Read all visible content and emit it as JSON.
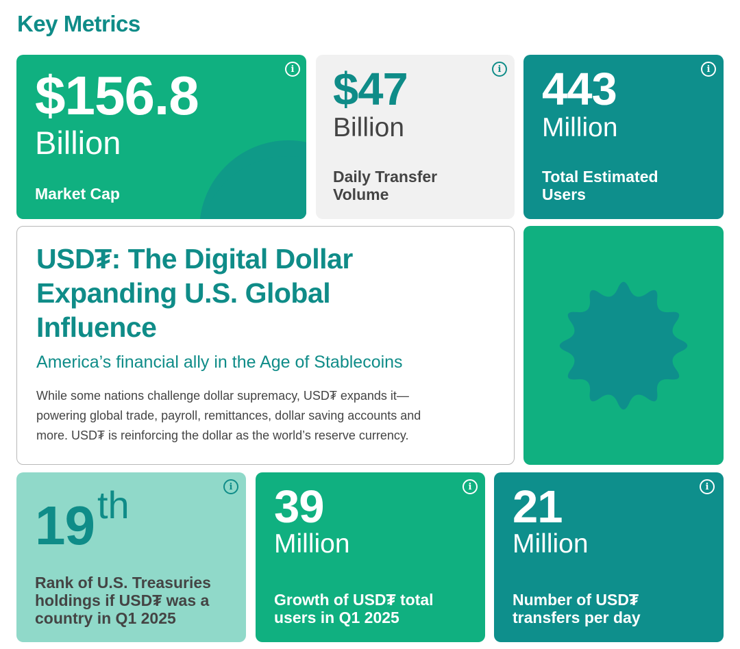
{
  "page": {
    "title": "Key Metrics"
  },
  "colors": {
    "teal_dark": "#0e8f8c",
    "green": "#10b080",
    "mint": "#90d9c9",
    "light_gray": "#f1f1f1",
    "title_teal": "#0f8c88",
    "text_gray": "#444444"
  },
  "info_icon": "i",
  "metrics": {
    "market_cap": {
      "value": "$156.8",
      "unit": "Billion",
      "label_lines": [
        "Market Cap"
      ]
    },
    "daily_volume": {
      "value": "$47",
      "unit": "Billion",
      "label_lines": [
        "Daily Transfer",
        "Volume"
      ]
    },
    "total_users": {
      "value": "443",
      "unit": "Million",
      "label_lines": [
        "Total Estimated",
        "Users"
      ]
    },
    "rank": {
      "value": "19",
      "suffix": "th",
      "label_lines": [
        "Rank of U.S. Treasuries",
        "holdings if USD₮ was a",
        "country in Q1 2025"
      ]
    },
    "user_growth": {
      "value": "39",
      "unit": "Million",
      "label_lines": [
        "Growth of USD₮ total",
        "users in Q1 2025"
      ]
    },
    "transfers": {
      "value": "21",
      "unit": "Million",
      "label_lines": [
        "Number of USD₮",
        "transfers per day"
      ]
    }
  },
  "feature": {
    "headline_lines": [
      "USD₮: The Digital Dollar",
      "Expanding U.S. Global",
      "Influence"
    ],
    "subtitle": "America’s financial ally in the Age of Stablecoins",
    "body_lines": [
      "While some nations challenge dollar supremacy, USD₮ expands it—",
      "powering global trade, payroll, remittances, dollar saving accounts and",
      "more. USD₮ is reinforcing the dollar as the world’s reserve currency."
    ]
  },
  "decor": {
    "icon": "starburst-icon"
  }
}
